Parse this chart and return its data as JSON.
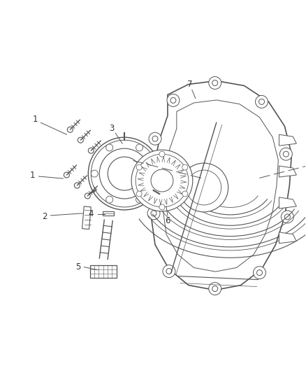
{
  "bg_color": "#ffffff",
  "line_color": "#555555",
  "light_line_color": "#999999",
  "label_color": "#333333",
  "fig_width": 4.38,
  "fig_height": 5.33,
  "dpi": 100
}
